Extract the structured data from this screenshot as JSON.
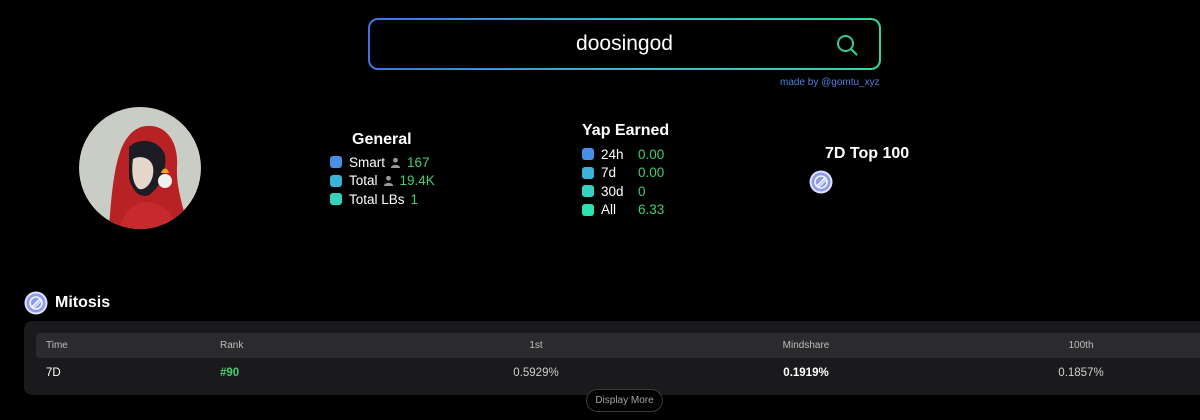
{
  "search": {
    "value": "doosingod",
    "credit": "made by @gomtu_xyz"
  },
  "general": {
    "title": "General",
    "rows": [
      {
        "label": "Smart",
        "value": "167",
        "color": "#4a8fe6",
        "icon": "person-icon"
      },
      {
        "label": "Total",
        "value": "19.4K",
        "color": "#3bb3d8",
        "icon": "person-icon"
      },
      {
        "label": "Total LBs",
        "value": "1",
        "color": "#33d3c0"
      }
    ]
  },
  "yap": {
    "title": "Yap Earned",
    "rows": [
      {
        "label": "24h",
        "value": "0.00",
        "color": "#4a8fe6"
      },
      {
        "label": "7d",
        "value": "0.00",
        "color": "#3bb3d8"
      },
      {
        "label": "30d",
        "value": "0",
        "color": "#33d3c0"
      },
      {
        "label": "All",
        "value": "6.33",
        "color": "#2fe0b0"
      }
    ]
  },
  "top100": {
    "title": "7D Top 100"
  },
  "project": {
    "name": "Mitosis",
    "table": {
      "headers": [
        "Time",
        "Rank",
        "1st",
        "Mindshare",
        "100th"
      ],
      "rows": [
        {
          "time": "7D",
          "rank": "#90",
          "first": "0.5929%",
          "mindshare": "0.1919%",
          "hundredth": "0.1857%"
        }
      ]
    },
    "display_more": "Display More"
  },
  "colors": {
    "accent_green": "#3fcf6e",
    "search_gradient_start": "#3f74e0",
    "search_gradient_end": "#2dd8a0"
  }
}
